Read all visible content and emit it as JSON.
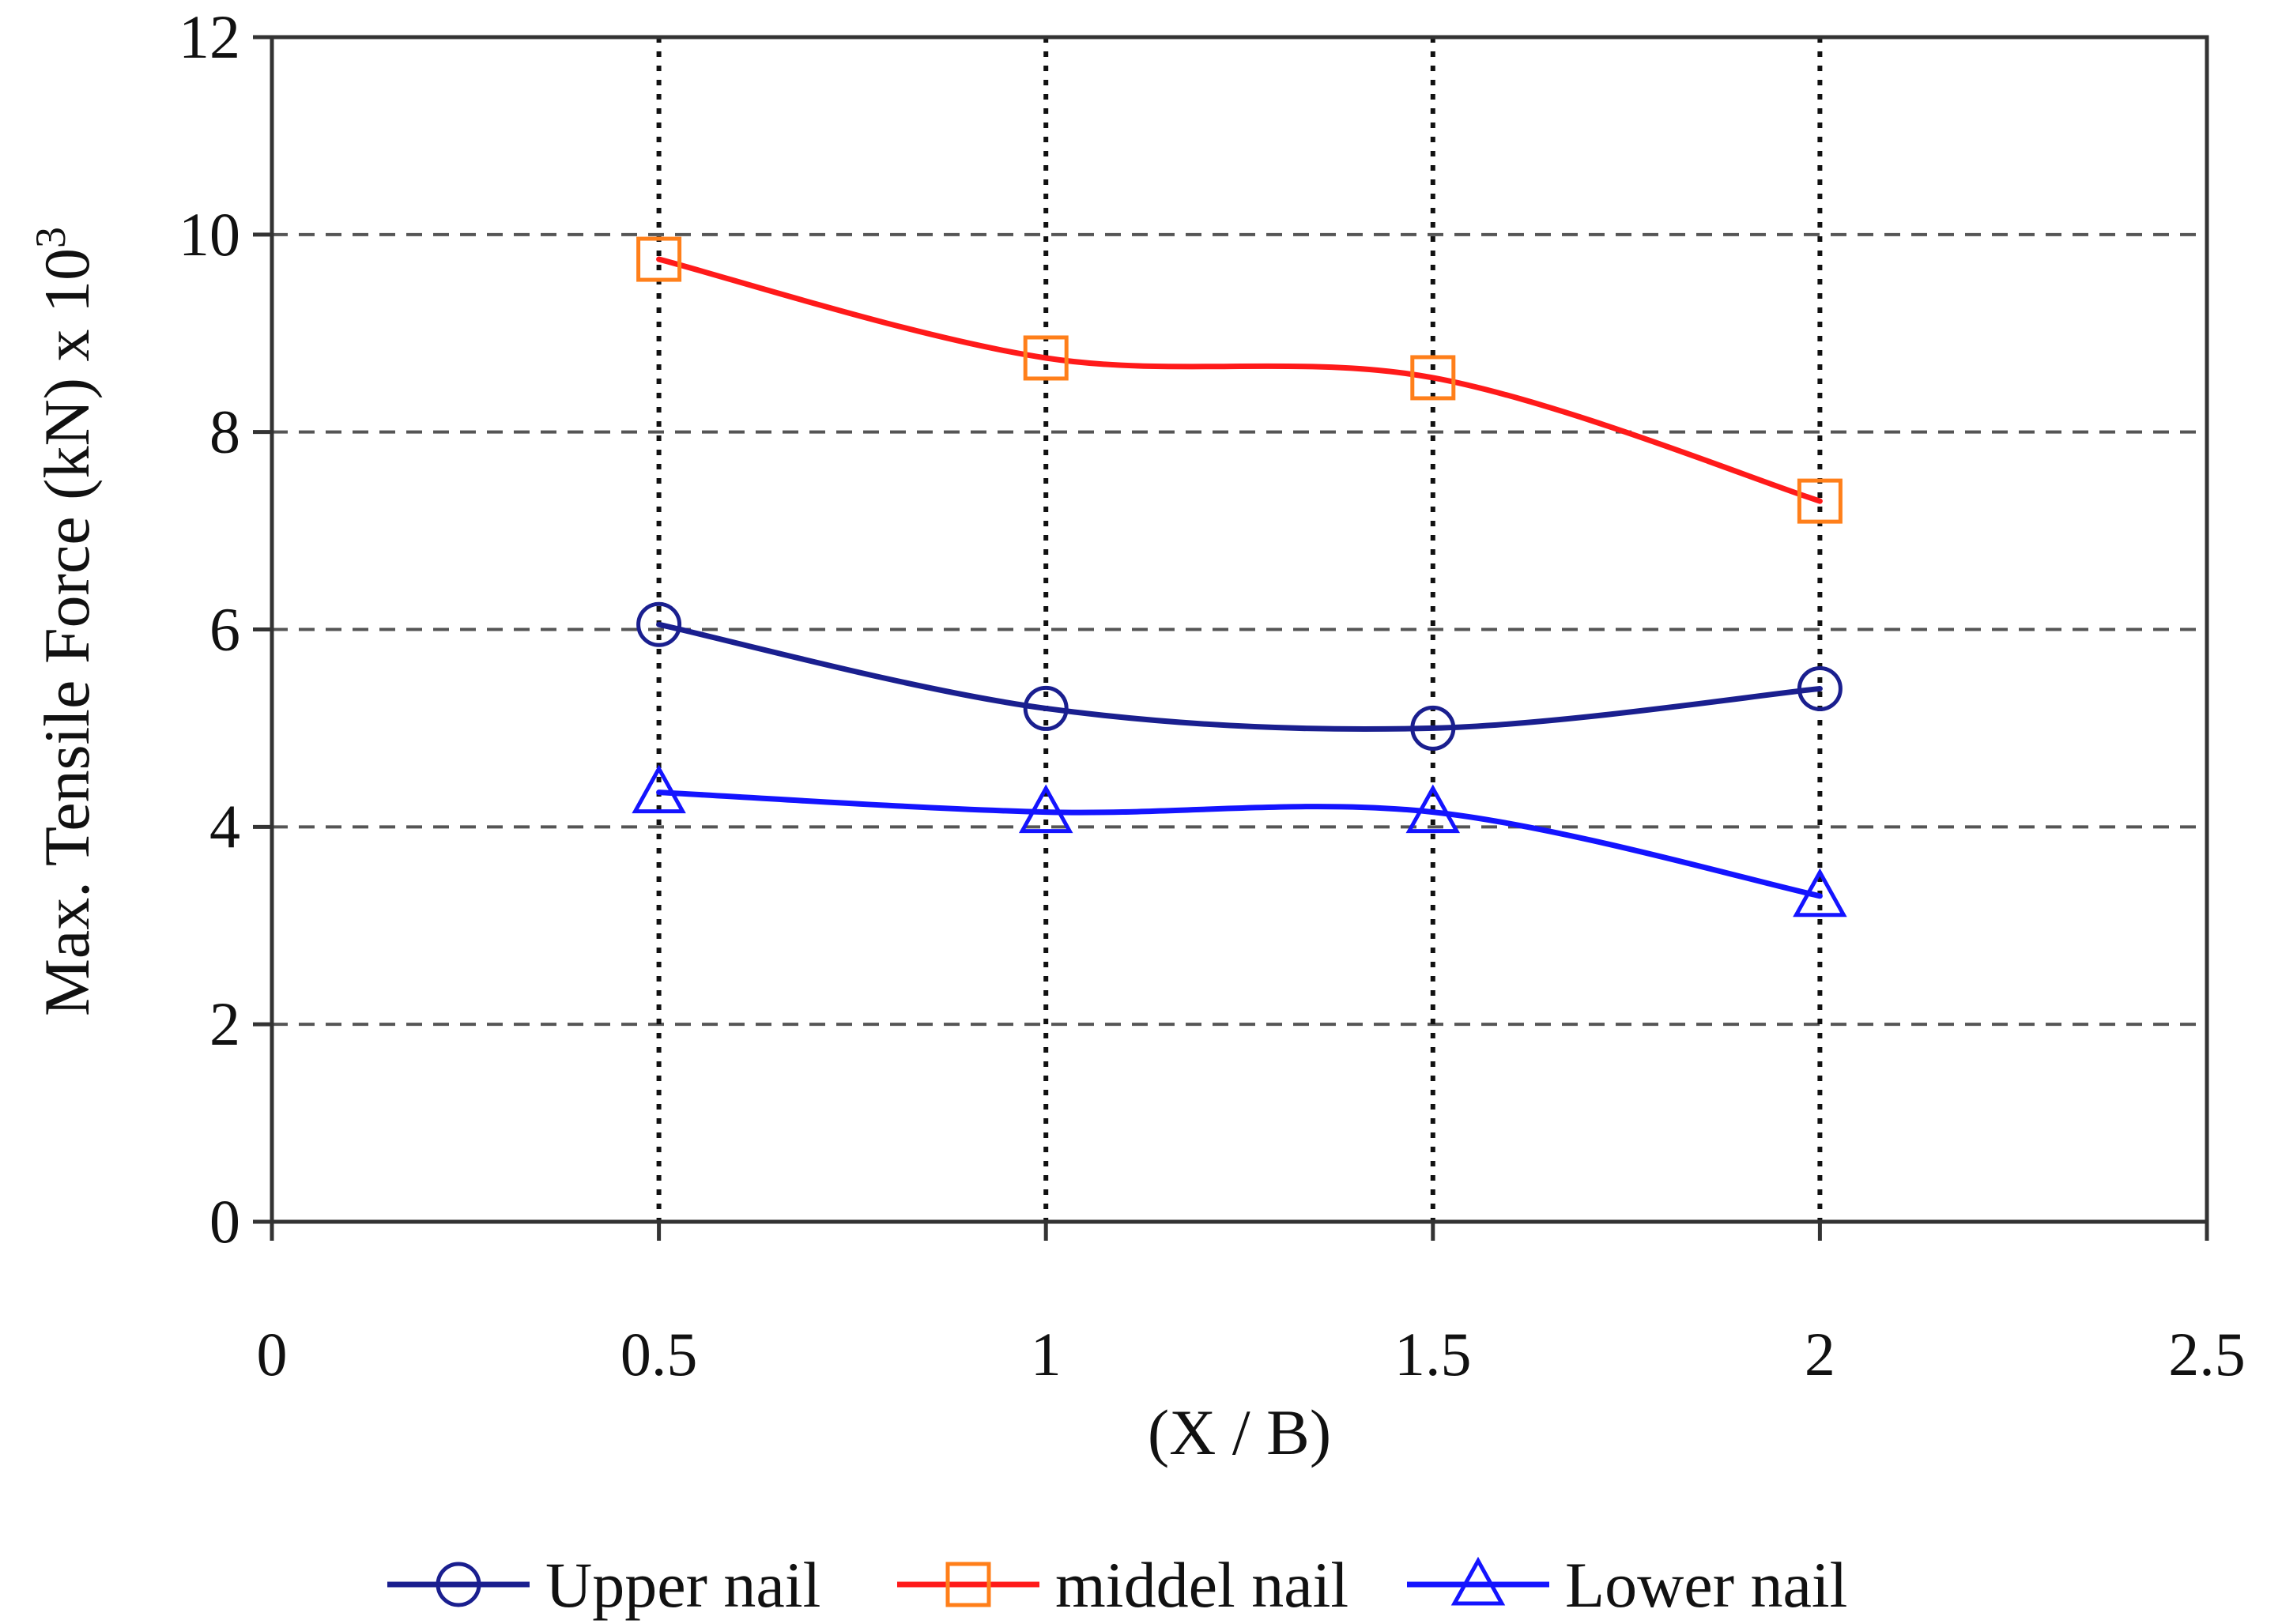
{
  "chart_data": {
    "type": "line",
    "title": "",
    "xlabel": "(X / B)",
    "ylabel": "Max. Tensile Force (kN) x 10",
    "ylabel_superscript": "3",
    "xlim": [
      0,
      2.5
    ],
    "ylim": [
      0,
      12
    ],
    "xticks": [
      0,
      0.5,
      1,
      1.5,
      2,
      2.5
    ],
    "xtick_labels": [
      "0",
      "0.5",
      "1",
      "1.5",
      "2",
      "2.5"
    ],
    "yticks": [
      0,
      2,
      4,
      6,
      8,
      10,
      12
    ],
    "ytick_labels": [
      "0",
      "2",
      "4",
      "6",
      "8",
      "10",
      "12"
    ],
    "grid": {
      "horizontal": "dashed",
      "vertical": "dotted",
      "vertical_at": [
        0.5,
        1,
        1.5,
        2
      ]
    },
    "legend_position": "bottom",
    "x": [
      0.5,
      1,
      1.5,
      2
    ],
    "series": [
      {
        "name": "Upper nail",
        "values": [
          6.05,
          5.2,
          5.0,
          5.4
        ],
        "color": "#1a1f8f",
        "marker": "circle",
        "marker_color": "#1a1f8f"
      },
      {
        "name": "middel nail",
        "values": [
          9.75,
          8.75,
          8.55,
          7.3
        ],
        "color": "#ff1a1a",
        "marker": "square",
        "marker_color": "#ff7f1a"
      },
      {
        "name": "Lower nail",
        "values": [
          4.35,
          4.15,
          4.15,
          3.3
        ],
        "color": "#1414ff",
        "marker": "triangle",
        "marker_color": "#1414ff"
      }
    ]
  }
}
